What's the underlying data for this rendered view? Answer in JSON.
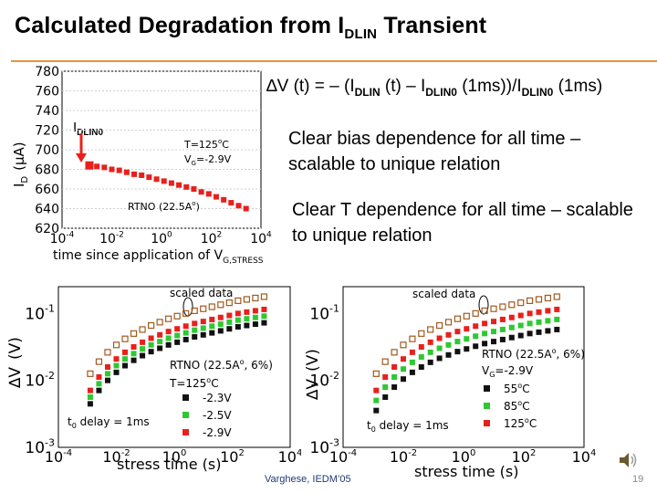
{
  "slide": {
    "title_main": "Calculated Degradation from I",
    "title_sub": "DLIN",
    "title_end": " Transient",
    "formula": {
      "p1": "∆V (t) = – (I",
      "s1": "DLIN",
      "p2": " (t) – I",
      "s2": "DLIN0",
      "p3": " (1ms))/I",
      "s3": "DLIN0",
      "p4": " (1ms)"
    },
    "bullet1": "Clear bias dependence for all time – scalable to unique relation",
    "bullet2": "Clear T dependence for all time – scalable to unique relation",
    "idlin0_main": "I",
    "idlin0_sub": "DLIN0",
    "citation": "Varghese, IEDM’05",
    "page_number": "19"
  },
  "chart_data": [
    {
      "type": "scatter",
      "y_axis": {
        "main": "I",
        "sub": "D",
        "unit": "(μA)"
      },
      "x_axis": {
        "main": "time since application of V",
        "sub": "G,STRESS"
      },
      "yticks": [
        "780",
        "760",
        "740",
        "720",
        "700",
        "680",
        "660",
        "640",
        "620"
      ],
      "xticks": [
        {
          "base": "10",
          "exp": "-4"
        },
        {
          "base": "10",
          "exp": "-2"
        },
        {
          "base": "10",
          "exp": "0"
        },
        {
          "base": "10",
          "exp": "2"
        },
        {
          "base": "10",
          "exp": "4"
        }
      ],
      "xlim_log10": [
        -4,
        4
      ],
      "ylim": [
        620,
        780
      ],
      "annotations": {
        "temp_main": "T=125",
        "temp_sup": "o",
        "temp_end": "C",
        "vg_main": "V",
        "vg_sub": "G",
        "vg_end": "=-2.9V",
        "rtno_main": "RTNO (22.5A",
        "rtno_sup": "o",
        "rtno_end": ")"
      },
      "marker_color": "#e8201c",
      "highlight_color": "#e8201c",
      "series": [
        {
          "x_log10": [
            -2.9,
            -2.6,
            -2.3,
            -2.0,
            -1.7,
            -1.4,
            -1.1,
            -0.8,
            -0.5,
            -0.2,
            0.1,
            0.4,
            0.7,
            1.0,
            1.3,
            1.6,
            1.9,
            2.2,
            2.5,
            2.8,
            3.1,
            3.4
          ],
          "y": [
            684,
            683,
            682,
            680,
            679,
            677,
            675,
            674,
            672,
            670,
            668,
            666,
            664,
            662,
            660,
            657,
            655,
            652,
            649,
            646,
            643,
            640
          ]
        }
      ]
    },
    {
      "type": "scatter",
      "y_axis": {
        "main": "∆V",
        "unit": "(V)"
      },
      "x_axis": "stress time (s)",
      "yticks": [
        {
          "base": "10",
          "exp": "-1"
        },
        {
          "base": "10",
          "exp": "-2"
        },
        {
          "base": "10",
          "exp": "-3"
        }
      ],
      "xticks": [
        {
          "base": "10",
          "exp": "-4"
        },
        {
          "base": "10",
          "exp": "-2"
        },
        {
          "base": "10",
          "exp": "0"
        },
        {
          "base": "10",
          "exp": "2"
        },
        {
          "base": "10",
          "exp": "4"
        }
      ],
      "xlim_log10": [
        -4,
        4
      ],
      "ylim_log10": [
        -3,
        -0.6
      ],
      "scaled_label": "scaled data",
      "annotations": {
        "rtno_main": "RTNO (22.5A",
        "rtno_sup": "o",
        "rtno_end": ", 6%)",
        "temp_main": "T=125",
        "temp_sup": "o",
        "temp_end": "C",
        "delay_main": "t",
        "delay_sub": "0",
        "delay_end": " delay = 1ms"
      },
      "legend": [
        {
          "label": "-2.3V",
          "color": "#111111"
        },
        {
          "label": "-2.5V",
          "color": "#2ec832"
        },
        {
          "label": "-2.9V",
          "color": "#e8201c"
        }
      ],
      "series": [
        {
          "name": "-2.9V",
          "color": "#e8201c",
          "x_log10": [
            -2.9,
            -2.6,
            -2.3,
            -2.0,
            -1.7,
            -1.4,
            -1.1,
            -0.8,
            -0.5,
            -0.2,
            0.1,
            0.4,
            0.7,
            1.0,
            1.3,
            1.6,
            1.9,
            2.2,
            2.5,
            2.8,
            3.1
          ],
          "y_log10": [
            -2.15,
            -1.95,
            -1.8,
            -1.68,
            -1.58,
            -1.5,
            -1.43,
            -1.37,
            -1.32,
            -1.27,
            -1.23,
            -1.19,
            -1.15,
            -1.12,
            -1.09,
            -1.06,
            -1.03,
            -1.0,
            -0.98,
            -0.96,
            -0.94
          ]
        },
        {
          "name": "-2.5V",
          "color": "#2ec832",
          "x_log10": [
            -2.9,
            -2.6,
            -2.3,
            -2.0,
            -1.7,
            -1.4,
            -1.1,
            -0.8,
            -0.5,
            -0.2,
            0.1,
            0.4,
            0.7,
            1.0,
            1.3,
            1.6,
            1.9,
            2.2,
            2.5,
            2.8,
            3.1
          ],
          "y_log10": [
            -2.25,
            -2.05,
            -1.9,
            -1.78,
            -1.68,
            -1.6,
            -1.53,
            -1.47,
            -1.42,
            -1.37,
            -1.33,
            -1.29,
            -1.25,
            -1.22,
            -1.19,
            -1.16,
            -1.13,
            -1.1,
            -1.08,
            -1.06,
            -1.04
          ]
        },
        {
          "name": "-2.3V",
          "color": "#111111",
          "x_log10": [
            -2.9,
            -2.6,
            -2.3,
            -2.0,
            -1.7,
            -1.4,
            -1.1,
            -0.8,
            -0.5,
            -0.2,
            0.1,
            0.4,
            0.7,
            1.0,
            1.3,
            1.6,
            1.9,
            2.2,
            2.5,
            2.8,
            3.1
          ],
          "y_log10": [
            -2.35,
            -2.15,
            -2.0,
            -1.88,
            -1.78,
            -1.7,
            -1.63,
            -1.57,
            -1.52,
            -1.47,
            -1.43,
            -1.39,
            -1.35,
            -1.32,
            -1.29,
            -1.26,
            -1.23,
            -1.2,
            -1.18,
            -1.16,
            -1.14
          ]
        },
        {
          "name": "scaled",
          "color": "#a05a1e",
          "x_log10": [
            -2.9,
            -2.6,
            -2.3,
            -2.0,
            -1.7,
            -1.4,
            -1.1,
            -0.8,
            -0.5,
            -0.2,
            0.1,
            0.4,
            0.7,
            1.0,
            1.3,
            1.6,
            1.9,
            2.2,
            2.5,
            2.8,
            3.1
          ],
          "y_log10": [
            -1.9,
            -1.72,
            -1.58,
            -1.47,
            -1.38,
            -1.3,
            -1.24,
            -1.18,
            -1.13,
            -1.08,
            -1.04,
            -1.0,
            -0.96,
            -0.93,
            -0.9,
            -0.87,
            -0.84,
            -0.81,
            -0.79,
            -0.77,
            -0.75
          ]
        }
      ]
    },
    {
      "type": "scatter",
      "y_axis": {
        "main": "∆V",
        "unit": "(V)"
      },
      "x_axis": "stress time (s)",
      "yticks": [
        {
          "base": "10",
          "exp": "-1"
        },
        {
          "base": "10",
          "exp": "-2"
        },
        {
          "base": "10",
          "exp": "-3"
        }
      ],
      "xticks": [
        {
          "base": "10",
          "exp": "-4"
        },
        {
          "base": "10",
          "exp": "-2"
        },
        {
          "base": "10",
          "exp": "0"
        },
        {
          "base": "10",
          "exp": "2"
        },
        {
          "base": "10",
          "exp": "4"
        }
      ],
      "xlim_log10": [
        -4,
        4
      ],
      "ylim_log10": [
        -3,
        -0.6
      ],
      "scaled_label": "scaled data",
      "annotations": {
        "rtno_main": "RTNO (22.5A",
        "rtno_sup": "o",
        "rtno_end": ", 6%)",
        "vg_main": "V",
        "vg_sub": "G",
        "vg_end": "=-2.9V",
        "delay_main": "t",
        "delay_sub": "0",
        "delay_end": " delay = 1ms"
      },
      "legend": [
        {
          "label_main": "55",
          "label_sup": "o",
          "label_end": "C",
          "color": "#111111"
        },
        {
          "label_main": "85",
          "label_sup": "o",
          "label_end": "C",
          "color": "#2ec832"
        },
        {
          "label_main": "125",
          "label_sup": "o",
          "label_end": "C",
          "color": "#e8201c"
        }
      ],
      "series": [
        {
          "name": "125C",
          "color": "#e8201c",
          "x_log10": [
            -2.9,
            -2.6,
            -2.3,
            -2.0,
            -1.7,
            -1.4,
            -1.1,
            -0.8,
            -0.5,
            -0.2,
            0.1,
            0.4,
            0.7,
            1.0,
            1.3,
            1.6,
            1.9,
            2.2,
            2.5,
            2.8,
            3.1
          ],
          "y_log10": [
            -2.15,
            -1.95,
            -1.8,
            -1.68,
            -1.58,
            -1.5,
            -1.43,
            -1.37,
            -1.32,
            -1.27,
            -1.23,
            -1.19,
            -1.15,
            -1.12,
            -1.09,
            -1.06,
            -1.03,
            -1.0,
            -0.98,
            -0.96,
            -0.94
          ]
        },
        {
          "name": "85C",
          "color": "#2ec832",
          "x_log10": [
            -2.9,
            -2.6,
            -2.3,
            -2.0,
            -1.7,
            -1.4,
            -1.1,
            -0.8,
            -0.5,
            -0.2,
            0.1,
            0.4,
            0.7,
            1.0,
            1.3,
            1.6,
            1.9,
            2.2,
            2.5,
            2.8,
            3.1
          ],
          "y_log10": [
            -2.3,
            -2.1,
            -1.95,
            -1.83,
            -1.73,
            -1.65,
            -1.58,
            -1.52,
            -1.47,
            -1.42,
            -1.38,
            -1.34,
            -1.3,
            -1.27,
            -1.24,
            -1.21,
            -1.18,
            -1.15,
            -1.13,
            -1.11,
            -1.09
          ]
        },
        {
          "name": "55C",
          "color": "#111111",
          "x_log10": [
            -2.9,
            -2.6,
            -2.3,
            -2.0,
            -1.7,
            -1.4,
            -1.1,
            -0.8,
            -0.5,
            -0.2,
            0.1,
            0.4,
            0.7,
            1.0,
            1.3,
            1.6,
            1.9,
            2.2,
            2.5,
            2.8,
            3.1
          ],
          "y_log10": [
            -2.45,
            -2.25,
            -2.1,
            -1.98,
            -1.88,
            -1.8,
            -1.73,
            -1.67,
            -1.62,
            -1.57,
            -1.53,
            -1.49,
            -1.45,
            -1.42,
            -1.39,
            -1.36,
            -1.33,
            -1.3,
            -1.28,
            -1.26,
            -1.24
          ]
        },
        {
          "name": "scaled",
          "color": "#a05a1e",
          "x_log10": [
            -2.9,
            -2.6,
            -2.3,
            -2.0,
            -1.7,
            -1.4,
            -1.1,
            -0.8,
            -0.5,
            -0.2,
            0.1,
            0.4,
            0.7,
            1.0,
            1.3,
            1.6,
            1.9,
            2.2,
            2.5,
            2.8,
            3.1
          ],
          "y_log10": [
            -1.9,
            -1.72,
            -1.58,
            -1.47,
            -1.38,
            -1.3,
            -1.24,
            -1.18,
            -1.13,
            -1.08,
            -1.04,
            -1.0,
            -0.96,
            -0.93,
            -0.9,
            -0.87,
            -0.84,
            -0.81,
            -0.79,
            -0.77,
            -0.75
          ]
        }
      ]
    }
  ]
}
